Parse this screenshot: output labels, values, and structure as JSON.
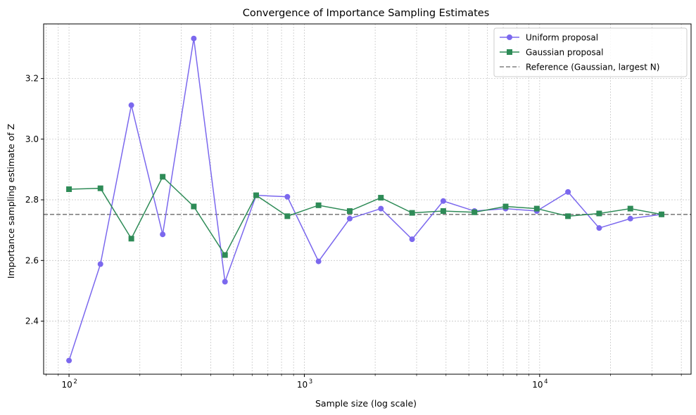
{
  "chart_data": {
    "type": "line",
    "title": "Convergence of Importance Sampling Estimates",
    "xlabel": "Sample size (log scale)",
    "ylabel": "Importance sampling estimate of Z",
    "xscale": "log",
    "xlim": [
      78,
      44000
    ],
    "ylim": [
      2.225,
      3.38
    ],
    "grid": true,
    "legend_position": "top-right",
    "x": [
      100,
      136,
      184,
      250,
      339,
      460,
      624,
      847,
      1149,
      1559,
      2115,
      2870,
      3894,
      5283,
      7168,
      9726,
      13196,
      17904,
      24292,
      32960
    ],
    "series": [
      {
        "name": "Uniform proposal",
        "color": "#7b68ee",
        "marker": "circle",
        "values": [
          2.27,
          2.588,
          3.112,
          2.686,
          3.332,
          2.53,
          2.815,
          2.81,
          2.597,
          2.738,
          2.771,
          2.67,
          2.796,
          2.763,
          2.771,
          2.763,
          2.826,
          2.707,
          2.738,
          2.752
        ]
      },
      {
        "name": "Gaussian proposal",
        "color": "#2e8b57",
        "marker": "square",
        "values": [
          2.835,
          2.838,
          2.672,
          2.876,
          2.778,
          2.618,
          2.815,
          2.746,
          2.782,
          2.763,
          2.807,
          2.757,
          2.763,
          2.759,
          2.778,
          2.771,
          2.746,
          2.755,
          2.771,
          2.752
        ]
      }
    ],
    "reference": {
      "name": "Reference (Gaussian, largest N)",
      "value": 2.752,
      "color": "#808080",
      "style": "dashed"
    },
    "y_ticks": [
      2.4,
      2.6,
      2.8,
      3.0,
      3.2
    ],
    "y_tick_labels": [
      "2.4",
      "2.6",
      "2.8",
      "3.0",
      "3.2"
    ],
    "x_major_ticks": [
      100,
      1000,
      10000
    ],
    "x_tick_labels": [
      {
        "base": "10",
        "exp": "2"
      },
      {
        "base": "10",
        "exp": "3"
      },
      {
        "base": "10",
        "exp": "4"
      }
    ]
  }
}
